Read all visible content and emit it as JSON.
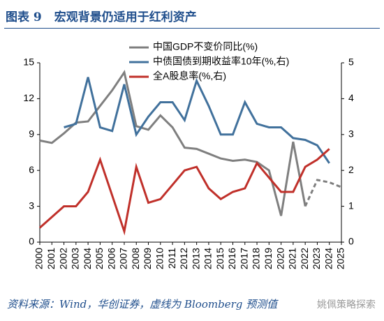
{
  "header": {
    "label": "图表 9",
    "title": "宏观背景仍适用于红利资产"
  },
  "chart_data": {
    "type": "line",
    "categories": [
      "2000",
      "2001",
      "2002",
      "2003",
      "2004",
      "2005",
      "2006",
      "2007",
      "2008",
      "2009",
      "2010",
      "2011",
      "2012",
      "2013",
      "2014",
      "2015",
      "2016",
      "2017",
      "2018",
      "2019",
      "2020",
      "2021",
      "2022",
      "2023",
      "2024",
      "2025"
    ],
    "ylim": [
      0,
      15
    ],
    "yticks": [
      0,
      3,
      6,
      9,
      12,
      15
    ],
    "y2lim": [
      0,
      5
    ],
    "y2ticks": [
      0,
      1,
      2,
      3,
      4,
      5
    ],
    "grid": false,
    "legend": "top",
    "series": [
      {
        "name": "中国GDP不变价同比(%)",
        "color": "#7f7f7f",
        "values": [
          8.5,
          8.3,
          9.1,
          10.0,
          10.1,
          11.4,
          12.7,
          14.2,
          9.7,
          9.4,
          10.6,
          9.6,
          7.9,
          7.8,
          7.4,
          7.0,
          6.8,
          6.9,
          6.7,
          6.0,
          2.2,
          8.4,
          3.0,
          null,
          null,
          null
        ],
        "forecast_values": [
          null,
          null,
          null,
          null,
          null,
          null,
          null,
          null,
          null,
          null,
          null,
          null,
          null,
          null,
          null,
          null,
          null,
          null,
          null,
          null,
          null,
          null,
          null,
          5.2,
          5.0,
          4.6
        ],
        "forecast_style": "dashed"
      },
      {
        "name": "中债国债到期收益率10年(%,右)",
        "color": "#41719c",
        "axis": "y2",
        "values": [
          null,
          null,
          3.2,
          3.3,
          4.6,
          3.2,
          3.1,
          4.4,
          3.0,
          3.5,
          3.9,
          3.9,
          3.4,
          4.5,
          3.8,
          3.0,
          3.0,
          3.9,
          3.3,
          3.2,
          3.2,
          2.9,
          2.85,
          2.7,
          2.2,
          null
        ]
      },
      {
        "name": "全A股息率(%,右)",
        "color": "#c0302a",
        "axis": "y2",
        "values": [
          0.4,
          0.7,
          1.0,
          1.0,
          1.4,
          2.3,
          1.3,
          0.3,
          2.1,
          1.1,
          1.2,
          1.6,
          2.0,
          2.1,
          1.5,
          1.2,
          1.4,
          1.5,
          2.2,
          1.8,
          1.4,
          1.4,
          2.1,
          2.3,
          2.6,
          null
        ]
      }
    ]
  },
  "source": "资料来源：Wind，华创证券，虚线为 Bloomberg 预测值",
  "watermark": "姚佩策略探索"
}
